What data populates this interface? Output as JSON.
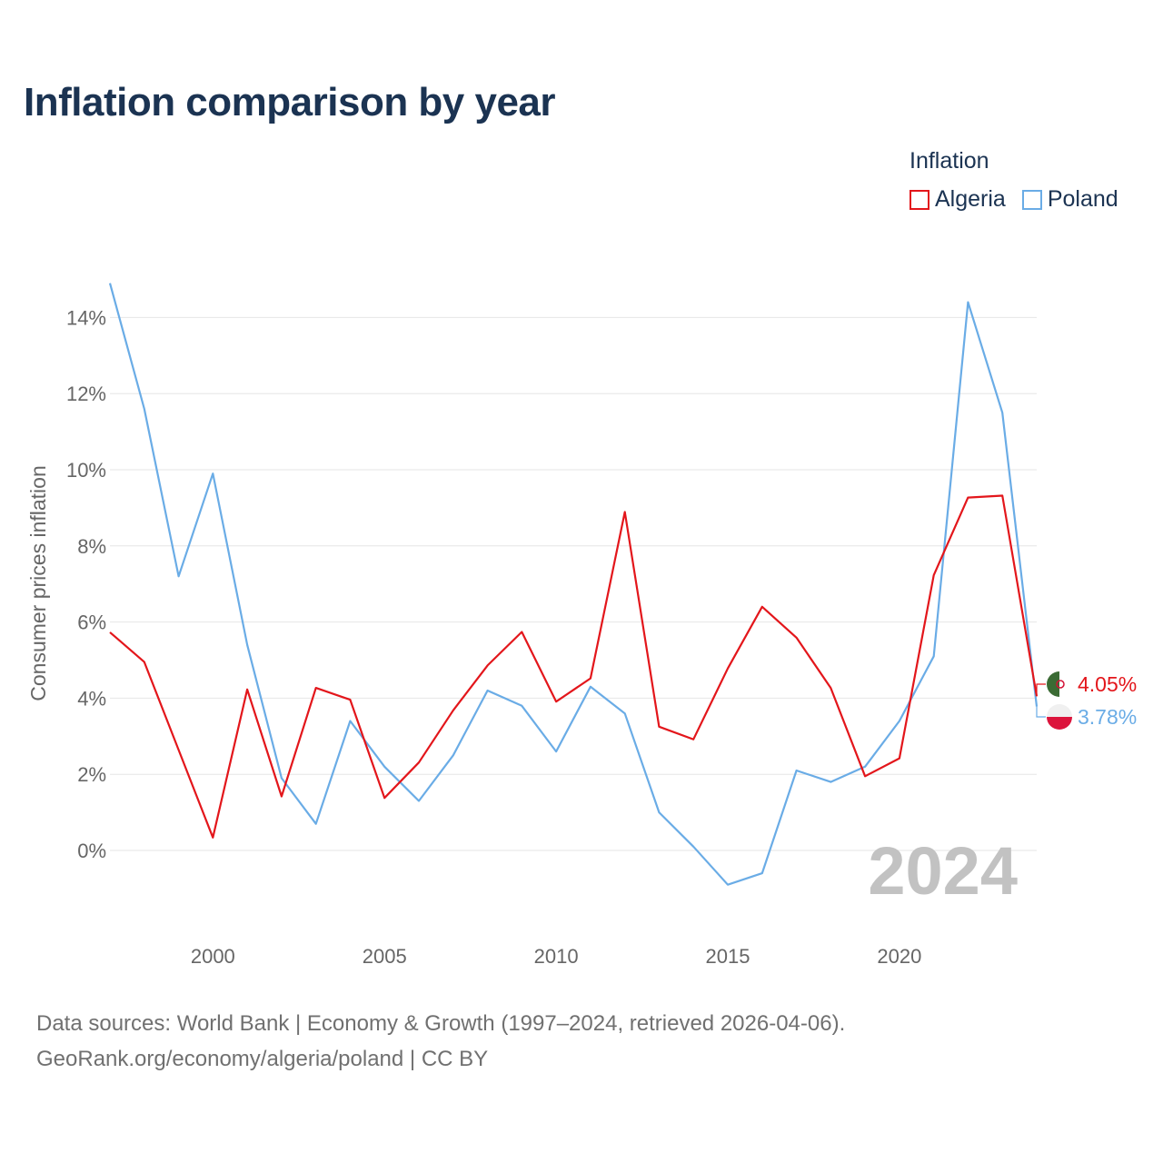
{
  "title": "Inflation comparison by year",
  "legend": {
    "title": "Inflation",
    "items": [
      {
        "label": "Algeria",
        "color": "#e3161b"
      },
      {
        "label": "Poland",
        "color": "#6aace6"
      }
    ]
  },
  "chart_data": {
    "type": "line",
    "title": "Inflation comparison by year",
    "xlabel": "",
    "ylabel": "Consumer prices inflation",
    "x": [
      1997,
      1998,
      1999,
      2000,
      2001,
      2002,
      2003,
      2004,
      2005,
      2006,
      2007,
      2008,
      2009,
      2010,
      2011,
      2012,
      2013,
      2014,
      2015,
      2016,
      2017,
      2018,
      2019,
      2020,
      2021,
      2022,
      2023,
      2024
    ],
    "series": [
      {
        "name": "Algeria",
        "color": "#e3161b",
        "values": [
          5.73,
          4.95,
          2.64,
          0.34,
          4.23,
          1.42,
          4.27,
          3.96,
          1.38,
          2.31,
          3.68,
          4.86,
          5.74,
          3.91,
          4.52,
          8.89,
          3.25,
          2.92,
          4.78,
          6.4,
          5.59,
          4.27,
          1.95,
          2.42,
          7.23,
          9.27,
          9.32,
          4.05
        ]
      },
      {
        "name": "Poland",
        "color": "#6aace6",
        "values": [
          14.9,
          11.6,
          7.2,
          9.9,
          5.4,
          1.9,
          0.7,
          3.4,
          2.2,
          1.3,
          2.5,
          4.2,
          3.8,
          2.6,
          4.3,
          3.6,
          1.0,
          0.1,
          -0.9,
          -0.6,
          2.1,
          1.8,
          2.2,
          3.4,
          5.1,
          14.4,
          11.5,
          3.78
        ]
      }
    ],
    "xticks": [
      2000,
      2005,
      2010,
      2015,
      2020
    ],
    "yticks": [
      0,
      2,
      4,
      6,
      8,
      10,
      12,
      14
    ],
    "ytick_labels": [
      "0%",
      "2%",
      "4%",
      "6%",
      "8%",
      "10%",
      "12%",
      "14%"
    ],
    "xlim": [
      1997,
      2024
    ],
    "ylim": [
      -2,
      15
    ],
    "year_watermark": "2024",
    "end_labels": [
      {
        "series": "Algeria",
        "text": "4.05%",
        "color": "#e3161b"
      },
      {
        "series": "Poland",
        "text": "3.78%",
        "color": "#6aace6"
      }
    ],
    "grid": true,
    "legend_position": "top-right"
  },
  "footer": {
    "line1": "Data sources: World Bank | Economy & Growth (1997–2024, retrieved 2026-04-06).",
    "line2": "GeoRank.org/economy/algeria/poland | CC BY"
  }
}
